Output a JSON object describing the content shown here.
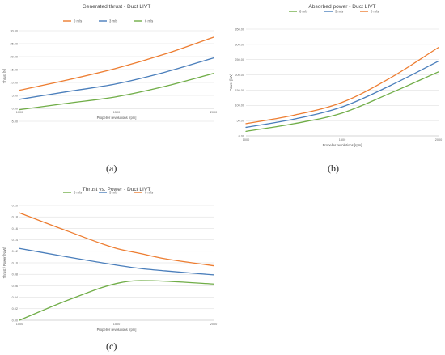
{
  "figure": {
    "panel_labels": [
      "(a)",
      "(b)",
      "(c)"
    ]
  },
  "chart_data": [
    {
      "type": "line",
      "title": "Generated thrust - Duct LIVT",
      "xlabel": "Propeller revolutions [rpm]",
      "ylabel": "Thrust [N]",
      "x_ticks": [
        "1000",
        "1500",
        "2000"
      ],
      "y_ticks": [
        "-5.00",
        "0.00",
        "5.00",
        "10.00",
        "15.00",
        "20.00",
        "25.00",
        "30.00"
      ],
      "xlim": [
        1000,
        2000
      ],
      "ylim": [
        -5,
        30
      ],
      "grid": true,
      "legend_position": "top",
      "x": [
        1000,
        1250,
        1500,
        1750,
        2000
      ],
      "series": [
        {
          "name": "0 m/s",
          "color": "#ed7d31",
          "values": [
            7.0,
            11.0,
            15.5,
            21.0,
            27.5
          ]
        },
        {
          "name": "3 m/s",
          "color": "#4a7ebb",
          "values": [
            3.5,
            6.5,
            9.5,
            14.0,
            19.5
          ]
        },
        {
          "name": "6 m/s",
          "color": "#70ad47",
          "values": [
            -0.5,
            2.0,
            4.5,
            8.5,
            13.5
          ]
        }
      ]
    },
    {
      "type": "line",
      "title": "Absorbed power - Duct LIVT",
      "xlabel": "Propeller revolutions [rpm]",
      "ylabel": "Power [kW]",
      "x_ticks": [
        "1000",
        "1500",
        "2000"
      ],
      "y_ticks": [
        "0.00",
        "50.00",
        "100.00",
        "150.00",
        "200.00",
        "250.00",
        "300.00",
        "350.00"
      ],
      "xlim": [
        1000,
        2000
      ],
      "ylim": [
        0,
        350
      ],
      "grid": true,
      "legend_position": "top",
      "x": [
        1000,
        1250,
        1500,
        1750,
        2000
      ],
      "series": [
        {
          "name": "6 m/s",
          "color": "#70ad47",
          "values": [
            15,
            40,
            75,
            140,
            210
          ]
        },
        {
          "name": "3 m/s",
          "color": "#4a7ebb",
          "values": [
            28,
            55,
            95,
            165,
            245
          ]
        },
        {
          "name": "0 m/s",
          "color": "#ed7d31",
          "values": [
            40,
            68,
            110,
            190,
            290
          ]
        }
      ]
    },
    {
      "type": "line",
      "title": "Thrust vs. Power - Duct LIVT",
      "xlabel": "Propeller revolutions [rpm]",
      "ylabel": "Thrust / Power [N/W]",
      "x_ticks": [
        "1000",
        "1500",
        "2000"
      ],
      "y_ticks": [
        "0.00",
        "0.02",
        "0.04",
        "0.06",
        "0.08",
        "0.10",
        "0.12",
        "0.14",
        "0.16",
        "0.18",
        "0.20"
      ],
      "xlim": [
        1000,
        2000
      ],
      "ylim": [
        0,
        0.2
      ],
      "grid": true,
      "legend_position": "top",
      "x": [
        1000,
        1250,
        1500,
        1625,
        1750,
        2000
      ],
      "series": [
        {
          "name": "6 m/s",
          "color": "#70ad47",
          "values": [
            0.0,
            0.035,
            0.064,
            0.069,
            0.068,
            0.063
          ]
        },
        {
          "name": "3 m/s",
          "color": "#4a7ebb",
          "values": [
            0.125,
            0.11,
            0.096,
            0.09,
            0.086,
            0.079
          ]
        },
        {
          "name": "0 m/s",
          "color": "#ed7d31",
          "values": [
            0.187,
            0.155,
            0.125,
            0.116,
            0.107,
            0.095
          ]
        }
      ]
    }
  ]
}
